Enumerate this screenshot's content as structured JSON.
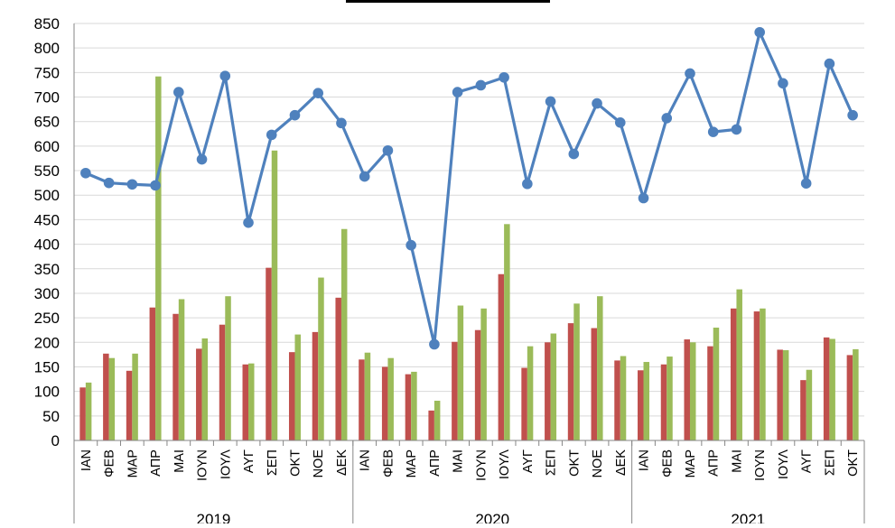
{
  "chart_data": {
    "type": "bar",
    "title": "",
    "xlabel": "",
    "ylabel": "",
    "ylim": [
      0,
      850
    ],
    "ytick_step": 50,
    "grid": true,
    "groups": [
      {
        "label": "2019",
        "categories": [
          "ΙΑΝ",
          "ΦΕΒ",
          "ΜΑΡ",
          "ΑΠΡ",
          "ΜΑΙ",
          "ΙΟΥΝ",
          "ΙΟΥΛ",
          "ΑΥΓ",
          "ΣΕΠ",
          "ΟΚΤ",
          "ΝΟΕ",
          "ΔΕΚ"
        ]
      },
      {
        "label": "2020",
        "categories": [
          "ΙΑΝ",
          "ΦΕΒ",
          "ΜΑΡ",
          "ΑΠΡ",
          "ΜΑΙ",
          "ΙΟΥΝ",
          "ΙΟΥΛ",
          "ΑΥΓ",
          "ΣΕΠ",
          "ΟΚΤ",
          "ΝΟΕ",
          "ΔΕΚ"
        ]
      },
      {
        "label": "2021",
        "categories": [
          "ΙΑΝ",
          "ΦΕΒ",
          "ΜΑΡ",
          "ΑΠΡ",
          "ΜΑΙ",
          "ΙΟΥΝ",
          "ΙΟΥΛ",
          "ΑΥΓ",
          "ΣΕΠ",
          "ΟΚΤ"
        ]
      }
    ],
    "series": [
      {
        "type": "bar",
        "color": "#c0504d",
        "values": [
          108,
          177,
          142,
          271,
          258,
          187,
          236,
          155,
          352,
          180,
          221,
          291,
          165,
          150,
          135,
          61,
          201,
          225,
          339,
          148,
          200,
          239,
          229,
          163,
          143,
          155,
          206,
          192,
          269,
          263,
          185,
          123,
          210,
          174
        ]
      },
      {
        "type": "bar",
        "color": "#9bbb59",
        "values": [
          118,
          168,
          177,
          742,
          288,
          208,
          294,
          157,
          591,
          216,
          332,
          431,
          179,
          168,
          140,
          81,
          275,
          269,
          441,
          192,
          218,
          279,
          294,
          172,
          160,
          171,
          200,
          230,
          308,
          269,
          184,
          144,
          207,
          186
        ]
      },
      {
        "type": "line",
        "color": "#4f81bd",
        "values": [
          545,
          525,
          522,
          520,
          710,
          573,
          743,
          444,
          623,
          663,
          708,
          647,
          538,
          591,
          398,
          196,
          710,
          724,
          740,
          523,
          691,
          584,
          687,
          648,
          494,
          657,
          748,
          629,
          634,
          832,
          728,
          524,
          768,
          663
        ]
      }
    ]
  }
}
